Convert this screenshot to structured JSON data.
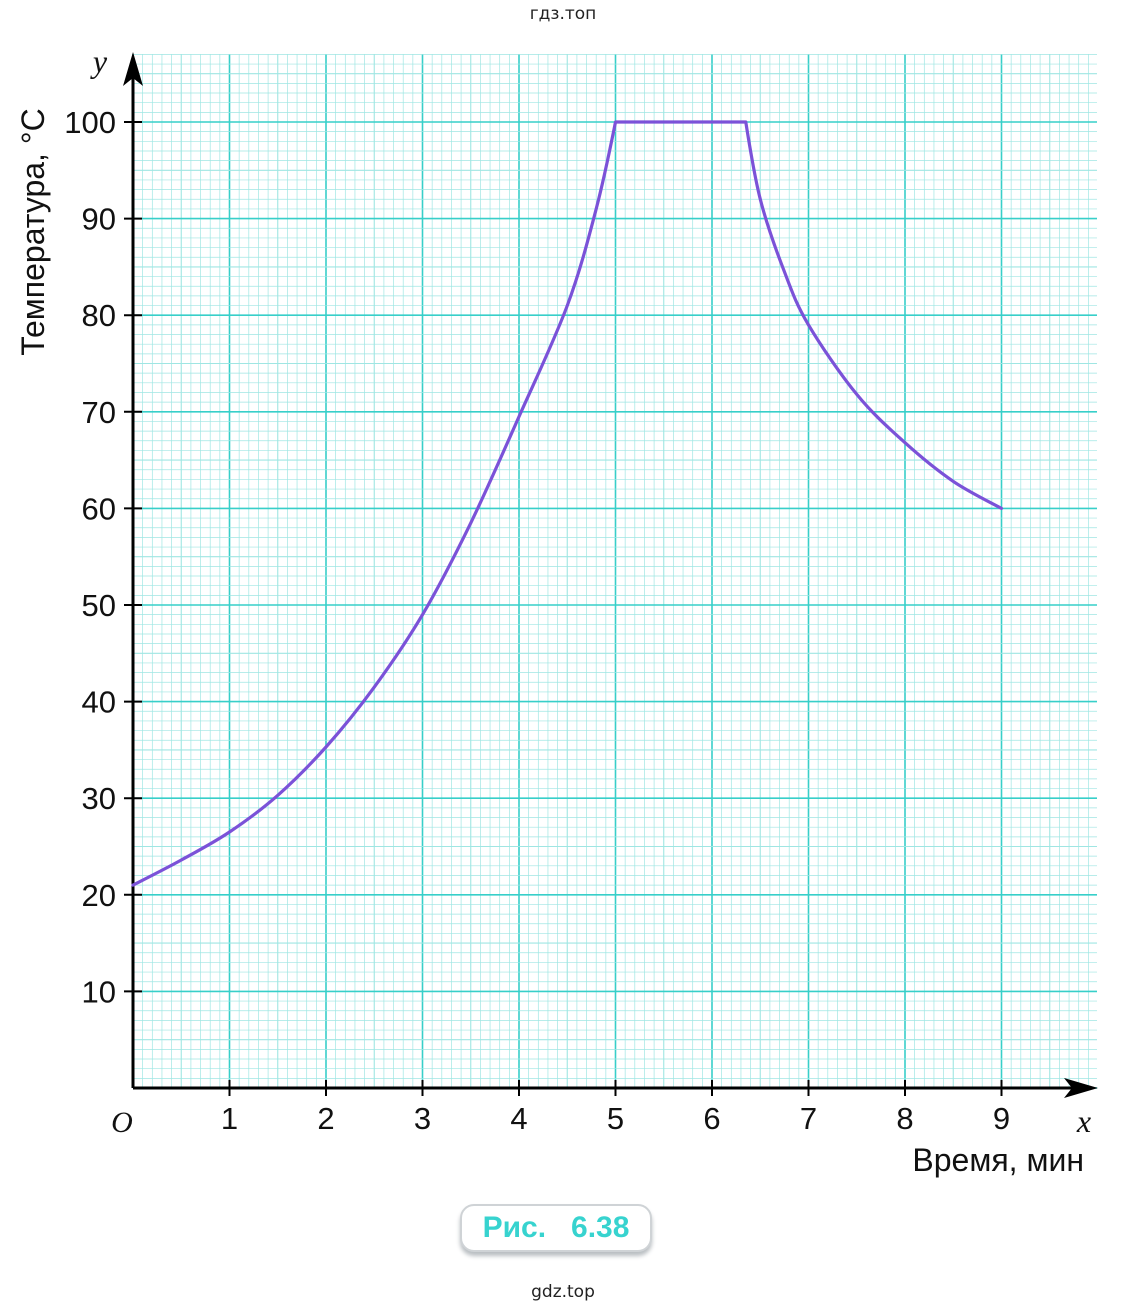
{
  "watermark_top": "гдз.топ",
  "watermark_bottom": "gdz.top",
  "figure_caption": "Рис.   6.38",
  "colors": {
    "grid_minor": "#9fe6e3",
    "grid_major": "#37cfc9",
    "curve": "#7b52d8",
    "axis": "#000000",
    "caption": "#37d3cf"
  },
  "chart_data": {
    "type": "line",
    "xlabel": "Время, мин",
    "ylabel": "Температура, °С",
    "x_axis_letter": "x",
    "y_axis_letter": "y",
    "origin_label": "O",
    "xlim": [
      0,
      10
    ],
    "ylim": [
      0,
      107
    ],
    "grid": true,
    "x_ticks": [
      "1",
      "2",
      "3",
      "4",
      "5",
      "6",
      "7",
      "8",
      "9"
    ],
    "y_ticks": [
      "10",
      "20",
      "30",
      "40",
      "50",
      "60",
      "70",
      "80",
      "90",
      "100"
    ],
    "series": [
      {
        "points": [
          [
            0,
            21
          ],
          [
            0.5,
            23.6
          ],
          [
            1,
            26.5
          ],
          [
            1.5,
            30.3
          ],
          [
            2,
            35.3
          ],
          [
            2.5,
            41.5
          ],
          [
            3,
            49
          ],
          [
            3.5,
            58.5
          ],
          [
            4,
            69.5
          ],
          [
            4.5,
            81
          ],
          [
            4.8,
            91
          ],
          [
            5,
            100
          ],
          [
            5.5,
            100
          ],
          [
            6,
            100
          ],
          [
            6.35,
            100
          ],
          [
            6.5,
            92
          ],
          [
            6.75,
            84.5
          ],
          [
            7,
            79
          ],
          [
            7.5,
            71.8
          ],
          [
            8,
            66.8
          ],
          [
            8.5,
            62.8
          ],
          [
            9,
            60
          ]
        ]
      }
    ]
  }
}
